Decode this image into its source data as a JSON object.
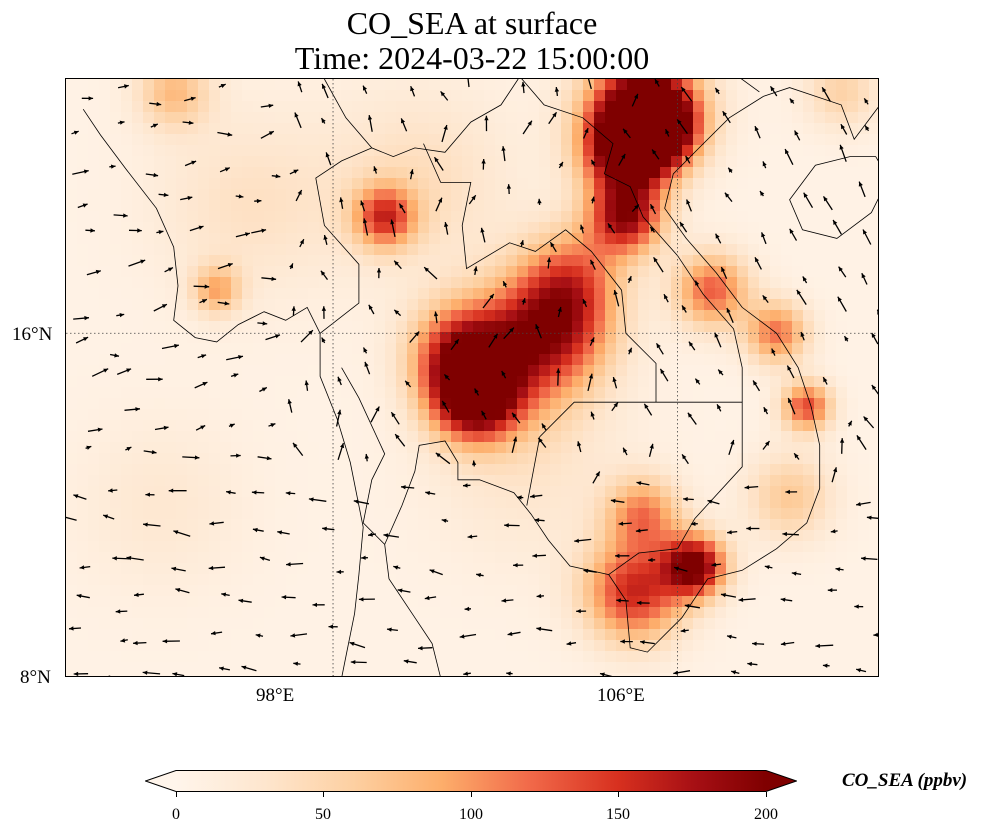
{
  "title": {
    "line1": "CO_SEA at surface",
    "line2": "Time: 2024-03-22 15:00:00"
  },
  "map": {
    "extent": {
      "lon_min": 91.8,
      "lon_max": 110.7,
      "lat_min": 8.0,
      "lat_max": 21.9
    },
    "gridlines": {
      "lons": [
        98,
        106
      ],
      "lats": [
        16
      ]
    },
    "lat_labels": [
      "16°N",
      "8°N"
    ],
    "lon_labels": [
      "98°E",
      "106°E"
    ],
    "colormap": "OrRd",
    "background_color": "#fff5eb",
    "hotspots_ppbv": [
      {
        "lon": 105.2,
        "lat": 21.2,
        "value": 200,
        "spread": 0.9
      },
      {
        "lon": 104.8,
        "lat": 20.2,
        "value": 180,
        "spread": 0.7
      },
      {
        "lon": 105.5,
        "lat": 20.8,
        "value": 200,
        "spread": 0.6
      },
      {
        "lon": 104.8,
        "lat": 18.7,
        "value": 170,
        "spread": 0.6
      },
      {
        "lon": 106.8,
        "lat": 17.0,
        "value": 120,
        "spread": 0.6
      },
      {
        "lon": 108.3,
        "lat": 16.0,
        "value": 110,
        "spread": 0.5
      },
      {
        "lon": 109.0,
        "lat": 14.3,
        "value": 130,
        "spread": 0.4
      },
      {
        "lon": 101.3,
        "lat": 14.5,
        "value": 200,
        "spread": 0.7
      },
      {
        "lon": 101.0,
        "lat": 15.5,
        "value": 150,
        "spread": 0.8
      },
      {
        "lon": 102.5,
        "lat": 15.6,
        "value": 100,
        "spread": 1.1
      },
      {
        "lon": 103.2,
        "lat": 16.3,
        "value": 110,
        "spread": 0.9
      },
      {
        "lon": 103.6,
        "lat": 17.4,
        "value": 80,
        "spread": 0.8
      },
      {
        "lon": 106.4,
        "lat": 10.6,
        "value": 200,
        "spread": 0.5
      },
      {
        "lon": 105.0,
        "lat": 10.0,
        "value": 150,
        "spread": 0.8
      },
      {
        "lon": 105.2,
        "lat": 11.8,
        "value": 100,
        "spread": 0.6
      },
      {
        "lon": 99.2,
        "lat": 18.7,
        "value": 130,
        "spread": 0.5
      },
      {
        "lon": 95.3,
        "lat": 17.0,
        "value": 80,
        "spread": 0.4
      },
      {
        "lon": 94.3,
        "lat": 21.6,
        "value": 70,
        "spread": 0.6
      },
      {
        "lon": 109.8,
        "lat": 21.6,
        "value": 50,
        "spread": 0.6
      },
      {
        "lon": 108.6,
        "lat": 12.2,
        "value": 60,
        "spread": 0.7
      },
      {
        "lon": 96.0,
        "lat": 19.0,
        "value": 30,
        "spread": 1.5
      },
      {
        "lon": 100.0,
        "lat": 19.5,
        "value": 35,
        "spread": 1.5
      },
      {
        "lon": 102.5,
        "lat": 13.0,
        "value": 25,
        "spread": 1.6
      },
      {
        "lon": 94.0,
        "lat": 12.0,
        "value": 20,
        "spread": 1.4
      }
    ],
    "wind_field": "quiver",
    "coastline_color": "#000000"
  },
  "colorbar": {
    "label": "CO_SEA (ppbv)",
    "vmin": 0,
    "vmax": 200,
    "extend": "both",
    "ticks": [
      0,
      50,
      100,
      150,
      200
    ],
    "tick_labels": [
      "0",
      "50",
      "100",
      "150",
      "200"
    ]
  }
}
